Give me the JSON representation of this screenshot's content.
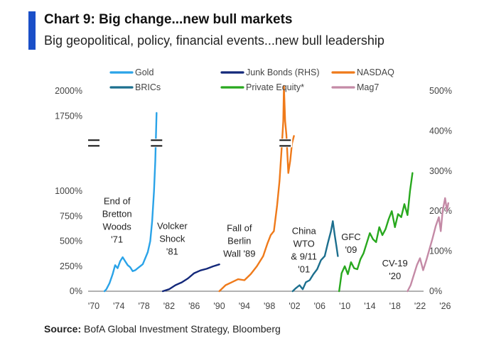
{
  "header": {
    "title": "Chart 9: Big change...new bull markets",
    "subtitle": "Big geopolitical, policy, financial events...new bull leadership"
  },
  "source": {
    "label": "Source:",
    "text": " BofA Global Investment Strategy, Bloomberg"
  },
  "chart_data": {
    "type": "line",
    "title": "Chart 9: Big change...new bull markets",
    "subtitle": "Big geopolitical, policy, financial events...new bull leadership",
    "xlabel": "",
    "ylabel": "",
    "xlim": [
      1970,
      2028
    ],
    "ylim_left": [
      0,
      2000
    ],
    "ylim_right": [
      0,
      500
    ],
    "left_axis_ticks": [
      {
        "value": 0,
        "label": "0%"
      },
      {
        "value": 250,
        "label": "250%"
      },
      {
        "value": 500,
        "label": "500%"
      },
      {
        "value": 750,
        "label": "750%"
      },
      {
        "value": 1000,
        "label": "1000%"
      },
      {
        "value": 1750,
        "label": "1750%"
      },
      {
        "value": 2000,
        "label": "2000%"
      }
    ],
    "right_axis_ticks": [
      {
        "value": 0,
        "label": "0%"
      },
      {
        "value": 100,
        "label": "100%"
      },
      {
        "value": 200,
        "label": "200%"
      },
      {
        "value": 300,
        "label": "300%"
      },
      {
        "value": 400,
        "label": "400%"
      },
      {
        "value": 500,
        "label": "500%"
      }
    ],
    "x_ticks": [
      {
        "value": 1970,
        "label": "'70"
      },
      {
        "value": 1974,
        "label": "'74"
      },
      {
        "value": 1978,
        "label": "'78"
      },
      {
        "value": 1982,
        "label": "'82"
      },
      {
        "value": 1986,
        "label": "'86"
      },
      {
        "value": 1990,
        "label": "'90"
      },
      {
        "value": 1994,
        "label": "'94"
      },
      {
        "value": 1998,
        "label": "'98"
      },
      {
        "value": 2002,
        "label": "'02"
      },
      {
        "value": 2006,
        "label": "'06"
      },
      {
        "value": 2010,
        "label": "'10"
      },
      {
        "value": 2014,
        "label": "'14"
      },
      {
        "value": 2018,
        "label": "'18"
      },
      {
        "value": 2022,
        "label": "'22"
      },
      {
        "value": 2026,
        "label": "'26"
      }
    ],
    "axis_break_markers": [
      {
        "x": 1970,
        "y": 1480
      },
      {
        "x": 1980,
        "y": 1480
      },
      {
        "x": 2000.5,
        "y": 1480
      }
    ],
    "grid": false,
    "legend_placement": "top",
    "legend": [
      {
        "name": "Gold",
        "color": "#2aa3e8"
      },
      {
        "name": "BRICs",
        "color": "#1c6f8e"
      },
      {
        "name": "Junk Bonds (RHS)",
        "color": "#13287a"
      },
      {
        "name": "Private Equity*",
        "color": "#28a81e"
      },
      {
        "name": "NASDAQ",
        "color": "#ef7a1a"
      },
      {
        "name": "Mag7",
        "color": "#c48aa6"
      }
    ],
    "series": [
      {
        "name": "Gold",
        "color": "#2aa3e8",
        "axis": "left",
        "points": [
          [
            1971.7,
            0
          ],
          [
            1972.0,
            20
          ],
          [
            1972.5,
            80
          ],
          [
            1973.0,
            170
          ],
          [
            1973.4,
            260
          ],
          [
            1973.8,
            230
          ],
          [
            1974.2,
            300
          ],
          [
            1974.6,
            340
          ],
          [
            1975.0,
            300
          ],
          [
            1975.4,
            260
          ],
          [
            1975.8,
            240
          ],
          [
            1976.2,
            200
          ],
          [
            1976.6,
            210
          ],
          [
            1977.0,
            230
          ],
          [
            1977.4,
            250
          ],
          [
            1977.8,
            270
          ],
          [
            1978.2,
            330
          ],
          [
            1978.6,
            390
          ],
          [
            1979.0,
            500
          ],
          [
            1979.3,
            700
          ],
          [
            1979.6,
            1000
          ],
          [
            1979.8,
            1300
          ],
          [
            1980.0,
            1780
          ]
        ]
      },
      {
        "name": "Junk Bonds (RHS)",
        "color": "#13287a",
        "axis": "right",
        "points": [
          [
            1981.0,
            0
          ],
          [
            1982.0,
            5
          ],
          [
            1983.0,
            15
          ],
          [
            1984.0,
            22
          ],
          [
            1985.0,
            32
          ],
          [
            1986.0,
            45
          ],
          [
            1987.0,
            52
          ],
          [
            1988.0,
            56
          ],
          [
            1989.0,
            62
          ],
          [
            1990.0,
            67
          ]
        ]
      },
      {
        "name": "NASDAQ",
        "color": "#ef7a1a",
        "axis": "left",
        "points": [
          [
            1990.0,
            0
          ],
          [
            1990.5,
            30
          ],
          [
            1991.0,
            60
          ],
          [
            1992.0,
            90
          ],
          [
            1993.0,
            120
          ],
          [
            1994.0,
            110
          ],
          [
            1995.0,
            170
          ],
          [
            1996.0,
            250
          ],
          [
            1997.0,
            350
          ],
          [
            1997.7,
            480
          ],
          [
            1998.2,
            560
          ],
          [
            1998.7,
            600
          ],
          [
            1999.2,
            850
          ],
          [
            1999.6,
            1100
          ],
          [
            2000.0,
            1480
          ],
          [
            2000.2,
            1700
          ],
          [
            2000.3,
            2050
          ],
          [
            2000.5,
            1700
          ],
          [
            2000.7,
            1560
          ],
          [
            2001.0,
            1180
          ],
          [
            2001.3,
            1300
          ],
          [
            2001.6,
            1480
          ],
          [
            2001.9,
            1550
          ]
        ]
      },
      {
        "name": "BRICs",
        "color": "#1c6f8e",
        "axis": "left",
        "points": [
          [
            2001.7,
            0
          ],
          [
            2002.2,
            30
          ],
          [
            2002.8,
            60
          ],
          [
            2003.3,
            20
          ],
          [
            2003.8,
            90
          ],
          [
            2004.4,
            110
          ],
          [
            2005.0,
            170
          ],
          [
            2005.6,
            220
          ],
          [
            2006.2,
            310
          ],
          [
            2006.8,
            350
          ],
          [
            2007.3,
            480
          ],
          [
            2007.8,
            600
          ],
          [
            2008.1,
            700
          ],
          [
            2008.4,
            560
          ],
          [
            2008.7,
            440
          ],
          [
            2008.9,
            350
          ]
        ]
      },
      {
        "name": "Private Equity*",
        "color": "#28a81e",
        "axis": "left",
        "points": [
          [
            2009.1,
            0
          ],
          [
            2009.5,
            180
          ],
          [
            2010.0,
            250
          ],
          [
            2010.5,
            170
          ],
          [
            2011.0,
            290
          ],
          [
            2011.5,
            230
          ],
          [
            2012.0,
            220
          ],
          [
            2012.5,
            320
          ],
          [
            2013.0,
            380
          ],
          [
            2013.5,
            480
          ],
          [
            2014.0,
            580
          ],
          [
            2014.5,
            520
          ],
          [
            2015.0,
            490
          ],
          [
            2015.5,
            640
          ],
          [
            2016.0,
            560
          ],
          [
            2016.5,
            620
          ],
          [
            2017.0,
            720
          ],
          [
            2017.5,
            800
          ],
          [
            2018.0,
            640
          ],
          [
            2018.5,
            770
          ],
          [
            2019.0,
            740
          ],
          [
            2019.5,
            870
          ],
          [
            2020.0,
            760
          ],
          [
            2020.4,
            1000
          ],
          [
            2020.8,
            1180
          ]
        ]
      },
      {
        "name": "Mag7",
        "color": "#c48aa6",
        "axis": "left",
        "points": [
          [
            2020.0,
            0
          ],
          [
            2020.5,
            60
          ],
          [
            2021.0,
            160
          ],
          [
            2021.5,
            260
          ],
          [
            2022.0,
            330
          ],
          [
            2022.5,
            210
          ],
          [
            2023.0,
            310
          ],
          [
            2023.5,
            420
          ],
          [
            2024.0,
            530
          ],
          [
            2024.5,
            650
          ],
          [
            2025.0,
            740
          ],
          [
            2025.3,
            600
          ],
          [
            2025.6,
            800
          ],
          [
            2026.0,
            930
          ],
          [
            2026.3,
            800
          ],
          [
            2026.5,
            880
          ]
        ]
      }
    ],
    "annotations": [
      {
        "lines": [
          "End of",
          "Bretton",
          "Woods",
          "'71"
        ],
        "x": 1973.7,
        "y": 870
      },
      {
        "lines": [
          "Volcker",
          "Shock",
          "'81"
        ],
        "x": 1982.5,
        "y": 620
      },
      {
        "lines": [
          "Fall of",
          "Berlin",
          "Wall '89"
        ],
        "x": 1993.2,
        "y": 600
      },
      {
        "lines": [
          "China",
          "WTO",
          "& 9/11",
          "'01"
        ],
        "x": 2003.5,
        "y": 570
      },
      {
        "lines": [
          "GFC",
          "'09"
        ],
        "x": 2011.0,
        "y": 510
      },
      {
        "lines": [
          "CV-19",
          "'20"
        ],
        "x": 2018.0,
        "y": 250
      }
    ]
  }
}
